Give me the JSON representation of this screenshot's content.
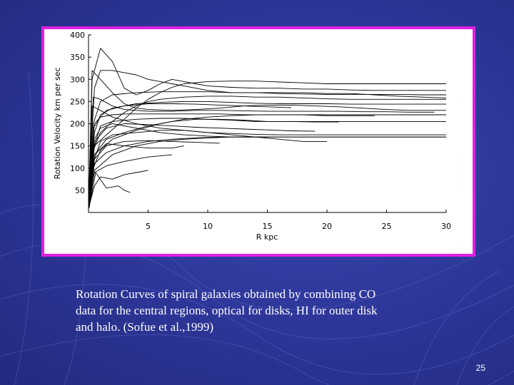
{
  "slide": {
    "caption": "Rotation Curves of spiral galaxies obtained  by combining CO\ndata for the central regions, optical for disks, HI for outer disk\nand halo. (Sofue et al.,1999)",
    "number": "25",
    "background_color": "#2c3596",
    "frame_color": "#e020e0"
  },
  "chart_data": {
    "type": "line",
    "xlabel": "R  kpc",
    "ylabel": "Rotation Velocity km per sec",
    "xlim": [
      0,
      30
    ],
    "ylim": [
      0,
      400
    ],
    "xticks": [
      5,
      10,
      15,
      20,
      25,
      30
    ],
    "yticks": [
      50,
      100,
      150,
      200,
      250,
      300,
      350,
      400
    ],
    "grid": false,
    "line_color": "#000000",
    "series": [
      {
        "x": [
          0.05,
          0.6,
          1.5,
          2.5,
          3,
          3.5
        ],
        "y": [
          10,
          90,
          55,
          60,
          50,
          45
        ]
      },
      {
        "x": [
          0.05,
          0.5,
          1,
          2,
          3,
          4,
          5
        ],
        "y": [
          15,
          60,
          80,
          75,
          85,
          90,
          95
        ]
      },
      {
        "x": [
          0.05,
          0.5,
          1.5,
          3,
          5,
          7
        ],
        "y": [
          20,
          90,
          105,
          115,
          125,
          130
        ]
      },
      {
        "x": [
          0.05,
          0.5,
          1.5,
          3,
          5,
          7,
          8
        ],
        "y": [
          30,
          130,
          155,
          150,
          145,
          145,
          150
        ]
      },
      {
        "x": [
          0.05,
          0.5,
          1,
          2,
          4,
          6,
          8,
          10,
          12,
          14,
          16,
          18,
          20
        ],
        "y": [
          25,
          120,
          160,
          175,
          180,
          185,
          185,
          180,
          175,
          170,
          165,
          160,
          160
        ]
      },
      {
        "x": [
          0.05,
          0.5,
          1,
          2,
          4,
          6,
          8,
          10,
          12,
          14,
          16,
          18,
          20,
          22,
          24,
          26,
          28,
          30
        ],
        "y": [
          20,
          150,
          195,
          205,
          210,
          212,
          212,
          210,
          208,
          205,
          205,
          205,
          205,
          205,
          205,
          205,
          205,
          205
        ]
      },
      {
        "x": [
          0.05,
          0.5,
          1,
          2,
          4,
          6,
          8,
          10,
          12,
          14,
          16,
          18,
          20,
          22,
          24,
          26,
          28,
          30
        ],
        "y": [
          15,
          180,
          220,
          235,
          245,
          248,
          250,
          250,
          248,
          246,
          245,
          245,
          245,
          244,
          244,
          244,
          244,
          244
        ]
      },
      {
        "x": [
          0.05,
          0.4,
          1,
          2,
          4,
          6,
          8,
          10,
          12,
          14,
          16,
          18,
          20,
          22,
          24,
          26,
          28,
          30
        ],
        "y": [
          40,
          200,
          250,
          265,
          270,
          272,
          272,
          272,
          270,
          270,
          268,
          267,
          266,
          266,
          266,
          266,
          265,
          265
        ]
      },
      {
        "x": [
          0.05,
          0.5,
          1,
          2,
          3,
          4,
          5,
          6,
          7,
          8,
          10,
          12,
          14,
          16,
          18,
          20,
          22,
          24,
          26,
          28,
          30
        ],
        "y": [
          60,
          280,
          320,
          320,
          315,
          310,
          300,
          295,
          290,
          285,
          275,
          270,
          270,
          270,
          270,
          268,
          268,
          265,
          262,
          260,
          258
        ]
      },
      {
        "x": [
          0.05,
          0.3,
          1,
          2,
          2.5,
          3,
          4,
          5,
          6,
          7,
          8,
          9,
          10,
          12,
          14,
          16,
          18,
          20,
          22,
          24,
          26,
          28,
          30
        ],
        "y": [
          50,
          300,
          370,
          340,
          310,
          280,
          265,
          275,
          290,
          300,
          295,
          290,
          285,
          282,
          280,
          280,
          278,
          278,
          276,
          275,
          275,
          275,
          275
        ]
      },
      {
        "x": [
          0.05,
          0.4,
          1,
          2,
          3,
          4,
          5,
          6,
          8,
          10,
          12,
          14,
          16,
          18,
          20,
          22,
          24,
          26,
          28,
          30
        ],
        "y": [
          20,
          140,
          180,
          205,
          225,
          240,
          250,
          255,
          260,
          262,
          262,
          260,
          260,
          258,
          256,
          255,
          255,
          255,
          255,
          255
        ]
      },
      {
        "x": [
          0.05,
          0.4,
          1,
          2,
          4,
          6,
          8,
          10,
          12,
          14,
          16,
          18,
          20,
          22,
          24
        ],
        "y": [
          10,
          100,
          140,
          165,
          185,
          200,
          210,
          215,
          218,
          220,
          220,
          220,
          218,
          218,
          218
        ]
      },
      {
        "x": [
          0.05,
          0.4,
          1,
          2,
          4,
          6,
          8,
          10,
          12,
          14,
          16,
          18,
          20,
          22,
          24,
          26,
          28,
          30
        ],
        "y": [
          25,
          160,
          190,
          200,
          190,
          180,
          175,
          172,
          170,
          170,
          170,
          170,
          170,
          170,
          170,
          170,
          170,
          170
        ]
      },
      {
        "x": [
          0.05,
          0.3,
          1,
          2,
          4,
          6,
          8,
          10,
          12,
          14,
          16,
          18,
          20,
          22,
          24,
          26,
          28,
          30
        ],
        "y": [
          40,
          240,
          230,
          215,
          200,
          190,
          185,
          180,
          178,
          176,
          175,
          175,
          175,
          175,
          175,
          175,
          175,
          175
        ]
      },
      {
        "x": [
          0.05,
          0.5,
          1.5,
          3,
          5,
          7,
          9,
          11,
          13,
          15
        ],
        "y": [
          15,
          110,
          135,
          150,
          160,
          165,
          168,
          170,
          170,
          170
        ]
      },
      {
        "x": [
          0.05,
          0.5,
          1.5,
          3,
          5,
          7,
          9,
          11,
          13,
          15,
          17,
          19,
          21
        ],
        "y": [
          20,
          130,
          165,
          180,
          195,
          205,
          210,
          210,
          208,
          205,
          205,
          204,
          204
        ]
      },
      {
        "x": [
          0.05,
          0.4,
          1,
          2,
          3,
          5,
          7,
          9,
          11,
          13,
          15,
          17,
          19,
          21,
          23,
          25,
          27,
          29
        ],
        "y": [
          30,
          260,
          255,
          240,
          232,
          228,
          228,
          230,
          230,
          229,
          228,
          228,
          228,
          228,
          227,
          227,
          226,
          226
        ]
      },
      {
        "x": [
          0.05,
          0.5,
          2,
          4,
          6,
          8,
          10,
          12,
          14,
          16,
          18,
          20,
          22,
          24,
          26,
          28,
          30
        ],
        "y": [
          10,
          95,
          130,
          150,
          160,
          165,
          168,
          170,
          170,
          170,
          170,
          170,
          170,
          170,
          170,
          170,
          170
        ]
      },
      {
        "x": [
          0.05,
          0.5,
          1.5,
          3,
          5,
          7,
          9,
          11,
          13,
          15,
          17
        ],
        "y": [
          35,
          200,
          230,
          240,
          245,
          245,
          244,
          242,
          240,
          238,
          236
        ]
      },
      {
        "x": [
          0.05,
          0.5,
          1.5,
          3,
          4,
          5,
          6,
          7,
          8,
          10,
          12,
          14,
          16,
          18,
          20,
          22,
          24,
          26,
          28,
          30
        ],
        "y": [
          30,
          150,
          175,
          210,
          235,
          255,
          270,
          282,
          290,
          295,
          296,
          296,
          294,
          292,
          290,
          290,
          290,
          290,
          290,
          290
        ]
      },
      {
        "x": [
          0.05,
          0.5,
          1.5,
          3,
          5,
          7,
          9,
          11
        ],
        "y": [
          15,
          120,
          150,
          160,
          162,
          160,
          158,
          156
        ]
      },
      {
        "x": [
          0.05,
          0.5,
          1.5,
          3,
          5,
          7,
          9,
          11,
          13,
          15,
          17,
          19
        ],
        "y": [
          20,
          160,
          190,
          200,
          198,
          195,
          192,
          190,
          188,
          186,
          184,
          183
        ]
      },
      {
        "x": [
          0.05,
          0.4,
          1,
          2,
          3,
          5,
          7,
          9,
          11,
          13,
          15,
          17,
          19,
          21,
          23,
          25,
          27,
          29,
          30
        ],
        "y": [
          25,
          190,
          215,
          220,
          222,
          222,
          222,
          222,
          222,
          220,
          220,
          220,
          220,
          220,
          220,
          220,
          220,
          220,
          220
        ]
      },
      {
        "x": [
          0.05,
          0.3,
          1,
          2,
          3,
          4,
          5,
          7,
          9,
          11,
          13,
          15,
          17,
          19,
          21,
          23,
          25,
          27,
          29,
          30
        ],
        "y": [
          50,
          320,
          300,
          270,
          245,
          235,
          232,
          230,
          232,
          235,
          240,
          242,
          242,
          240,
          238,
          235,
          232,
          230,
          230,
          230
        ]
      }
    ]
  }
}
